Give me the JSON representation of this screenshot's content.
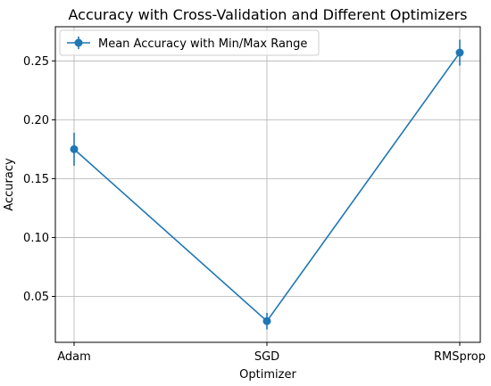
{
  "chart_data": {
    "type": "line",
    "title": "Accuracy with Cross-Validation and Different Optimizers",
    "xlabel": "Optimizer",
    "ylabel": "Accuracy",
    "categories": [
      "Adam",
      "SGD",
      "RMSprop"
    ],
    "series": [
      {
        "name": "Mean Accuracy with Min/Max Range",
        "values": [
          0.175,
          0.029,
          0.257
        ],
        "min": [
          0.161,
          0.022,
          0.246
        ],
        "max": [
          0.189,
          0.036,
          0.268
        ],
        "color": "#1f77b4"
      }
    ],
    "ylim": [
      0.011,
      0.279
    ],
    "yticks": [
      "0.05",
      "0.10",
      "0.15",
      "0.20",
      "0.25"
    ],
    "grid": true,
    "legend_position": "upper-left"
  }
}
